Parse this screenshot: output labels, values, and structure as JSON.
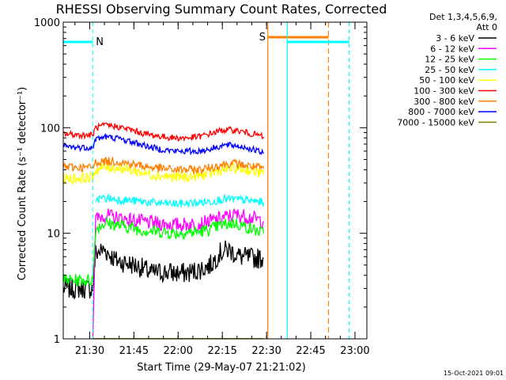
{
  "chart_data": {
    "type": "line",
    "title": "RHESSI Observing Summary Count Rates, Corrected",
    "xlabel": "Start Time (29-May-07 21:21:02)",
    "ylabel": "Corrected Count Rate (s⁻¹ detector⁻¹)",
    "y_scale": "log",
    "ylim": [
      1,
      1000
    ],
    "y_ticks": [
      {
        "value": 1,
        "label": "1"
      },
      {
        "value": 10,
        "label": "10"
      },
      {
        "value": 100,
        "label": "100"
      },
      {
        "value": 1000,
        "label": "1000"
      }
    ],
    "x_unit": "minutes after 21:21:02",
    "xlim": [
      0,
      103
    ],
    "x_ticks": [
      {
        "value": 8.97,
        "label": "21:30"
      },
      {
        "value": 23.97,
        "label": "21:45"
      },
      {
        "value": 38.97,
        "label": "22:00"
      },
      {
        "value": 53.97,
        "label": "22:15"
      },
      {
        "value": 68.97,
        "label": "22:30"
      },
      {
        "value": 83.97,
        "label": "22:45"
      },
      {
        "value": 98.97,
        "label": "23:00"
      }
    ],
    "legend_header": [
      "Det 1,3,4,5,6,9,",
      "Att 0"
    ],
    "legend_position": "right",
    "series": [
      {
        "name": "3 - 6 keV",
        "color": "#000000",
        "points": [
          [
            0,
            3.0
          ],
          [
            4,
            3.0
          ],
          [
            10,
            3.0
          ],
          [
            11,
            6.5
          ],
          [
            14,
            7.0
          ],
          [
            18,
            5.5
          ],
          [
            22,
            5.2
          ],
          [
            26,
            4.8
          ],
          [
            30,
            4.2
          ],
          [
            34,
            4.3
          ],
          [
            38,
            4.2
          ],
          [
            42,
            4.2
          ],
          [
            46,
            4.5
          ],
          [
            50,
            5.0
          ],
          [
            53,
            6.5
          ],
          [
            56,
            7.0
          ],
          [
            60,
            6.0
          ],
          [
            65,
            5.8
          ],
          [
            68,
            5.8
          ]
        ]
      },
      {
        "name": "6 - 12 keV",
        "color": "#ff00ff",
        "points": [
          [
            10,
            1.0
          ],
          [
            11,
            13.5
          ],
          [
            14,
            15.0
          ],
          [
            18,
            14.0
          ],
          [
            22,
            13.5
          ],
          [
            26,
            13.0
          ],
          [
            30,
            12.5
          ],
          [
            34,
            12.3
          ],
          [
            38,
            12.0
          ],
          [
            42,
            12.2
          ],
          [
            46,
            12.3
          ],
          [
            50,
            13.0
          ],
          [
            54,
            14.0
          ],
          [
            58,
            15.0
          ],
          [
            62,
            14.5
          ],
          [
            66,
            13.5
          ],
          [
            68,
            13.0
          ]
        ]
      },
      {
        "name": "12 - 25 keV",
        "color": "#00ff00",
        "points": [
          [
            0,
            3.6
          ],
          [
            4,
            3.6
          ],
          [
            10,
            3.6
          ],
          [
            11,
            11.0
          ],
          [
            14,
            12.5
          ],
          [
            18,
            12.0
          ],
          [
            22,
            11.5
          ],
          [
            26,
            10.8
          ],
          [
            30,
            10.5
          ],
          [
            34,
            10.3
          ],
          [
            38,
            10.0
          ],
          [
            42,
            10.2
          ],
          [
            46,
            10.3
          ],
          [
            50,
            11.0
          ],
          [
            54,
            12.0
          ],
          [
            58,
            12.5
          ],
          [
            62,
            11.5
          ],
          [
            66,
            10.5
          ],
          [
            68,
            10.0
          ]
        ]
      },
      {
        "name": "25 - 50 keV",
        "color": "#00ffff",
        "points": [
          [
            11,
            21.0
          ],
          [
            14,
            21.5
          ],
          [
            18,
            21.0
          ],
          [
            22,
            20.5
          ],
          [
            26,
            20.0
          ],
          [
            30,
            19.5
          ],
          [
            34,
            19.2
          ],
          [
            38,
            19.0
          ],
          [
            42,
            19.2
          ],
          [
            46,
            19.5
          ],
          [
            50,
            20.0
          ],
          [
            54,
            21.0
          ],
          [
            58,
            21.0
          ],
          [
            62,
            20.5
          ],
          [
            66,
            20.0
          ],
          [
            68,
            19.5
          ]
        ]
      },
      {
        "name": "50 - 100 keV",
        "color": "#ffff00",
        "points": [
          [
            0,
            33
          ],
          [
            4,
            33
          ],
          [
            10,
            34
          ],
          [
            11,
            40
          ],
          [
            14,
            42
          ],
          [
            18,
            42
          ],
          [
            22,
            40
          ],
          [
            26,
            38
          ],
          [
            30,
            36
          ],
          [
            34,
            35
          ],
          [
            38,
            34
          ],
          [
            42,
            34
          ],
          [
            46,
            35
          ],
          [
            50,
            37
          ],
          [
            54,
            40
          ],
          [
            58,
            41
          ],
          [
            62,
            40
          ],
          [
            66,
            38
          ],
          [
            68,
            36
          ]
        ]
      },
      {
        "name": "100 - 300 keV",
        "color": "#ff0000",
        "points": [
          [
            0,
            88
          ],
          [
            4,
            86
          ],
          [
            10,
            85
          ],
          [
            11,
            100
          ],
          [
            14,
            105
          ],
          [
            18,
            103
          ],
          [
            22,
            97
          ],
          [
            26,
            90
          ],
          [
            30,
            85
          ],
          [
            34,
            82
          ],
          [
            38,
            80
          ],
          [
            42,
            80
          ],
          [
            46,
            82
          ],
          [
            50,
            88
          ],
          [
            54,
            95
          ],
          [
            58,
            95
          ],
          [
            62,
            90
          ],
          [
            66,
            85
          ],
          [
            68,
            82
          ]
        ]
      },
      {
        "name": "300 - 800 keV",
        "color": "#ff8000",
        "points": [
          [
            0,
            43
          ],
          [
            4,
            42
          ],
          [
            10,
            42
          ],
          [
            11,
            47
          ],
          [
            14,
            48
          ],
          [
            18,
            48
          ],
          [
            22,
            46
          ],
          [
            26,
            44
          ],
          [
            30,
            42
          ],
          [
            34,
            41
          ],
          [
            38,
            40
          ],
          [
            42,
            40
          ],
          [
            46,
            40
          ],
          [
            50,
            42
          ],
          [
            54,
            45
          ],
          [
            58,
            46
          ],
          [
            62,
            44
          ],
          [
            66,
            42
          ],
          [
            68,
            41
          ]
        ]
      },
      {
        "name": "800 - 7000 keV",
        "color": "#0000ff",
        "points": [
          [
            0,
            67
          ],
          [
            4,
            65
          ],
          [
            10,
            65
          ],
          [
            11,
            78
          ],
          [
            14,
            82
          ],
          [
            18,
            80
          ],
          [
            22,
            75
          ],
          [
            26,
            70
          ],
          [
            30,
            65
          ],
          [
            34,
            62
          ],
          [
            38,
            60
          ],
          [
            42,
            60
          ],
          [
            46,
            60
          ],
          [
            50,
            63
          ],
          [
            54,
            68
          ],
          [
            58,
            68
          ],
          [
            62,
            65
          ],
          [
            66,
            60
          ],
          [
            68,
            57
          ]
        ]
      },
      {
        "name": "7000 - 15000 keV",
        "color": "#808000",
        "points": [
          [
            10,
            1.0
          ],
          [
            68,
            1.0
          ]
        ]
      }
    ],
    "annotations": [
      {
        "label": "N",
        "color": "#00ffff"
      },
      {
        "label": "S",
        "color": "#ff8000"
      }
    ]
  },
  "footer": {
    "stamp": "15-Oct-2021 09:01"
  }
}
